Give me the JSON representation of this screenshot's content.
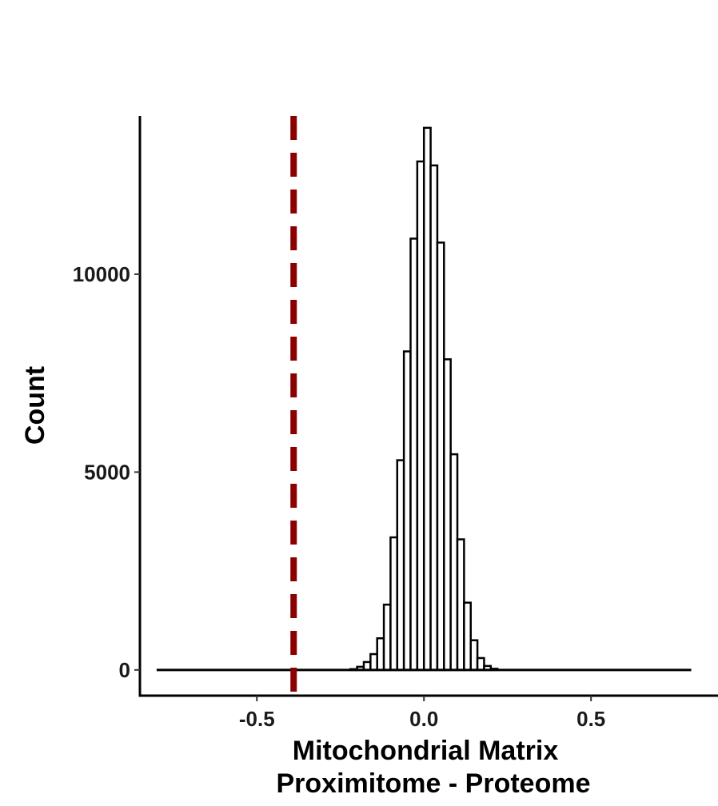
{
  "chart_data": {
    "type": "bar",
    "subtype": "histogram",
    "title": "",
    "xlabel_lines": [
      "Mitochondrial Matrix",
      "Proximitome - Proteome"
    ],
    "ylabel": "Count",
    "xlim": [
      -0.85,
      0.88
    ],
    "ylim": [
      -650,
      14000
    ],
    "x_ticks": [
      -0.5,
      0.0,
      0.5
    ],
    "x_tick_labels": [
      "-0.5",
      "0.0",
      "0.5"
    ],
    "y_ticks": [
      0,
      5000,
      10000
    ],
    "y_tick_labels": [
      "0",
      "5000",
      "10000"
    ],
    "bin_width": 0.02,
    "range": [
      -0.8,
      0.8
    ],
    "bins": [
      {
        "x0": -0.22,
        "x1": -0.2,
        "count": 20
      },
      {
        "x0": -0.2,
        "x1": -0.18,
        "count": 80
      },
      {
        "x0": -0.18,
        "x1": -0.16,
        "count": 200
      },
      {
        "x0": -0.16,
        "x1": -0.14,
        "count": 400
      },
      {
        "x0": -0.14,
        "x1": -0.12,
        "count": 800
      },
      {
        "x0": -0.12,
        "x1": -0.1,
        "count": 1650
      },
      {
        "x0": -0.1,
        "x1": -0.08,
        "count": 3350
      },
      {
        "x0": -0.08,
        "x1": -0.06,
        "count": 5300
      },
      {
        "x0": -0.06,
        "x1": -0.04,
        "count": 8050
      },
      {
        "x0": -0.04,
        "x1": -0.02,
        "count": 10900
      },
      {
        "x0": -0.02,
        "x1": 0.0,
        "count": 12850
      },
      {
        "x0": 0.0,
        "x1": 0.02,
        "count": 13700
      },
      {
        "x0": 0.02,
        "x1": 0.04,
        "count": 12750
      },
      {
        "x0": 0.04,
        "x1": 0.06,
        "count": 10800
      },
      {
        "x0": 0.06,
        "x1": 0.08,
        "count": 7850
      },
      {
        "x0": 0.08,
        "x1": 0.1,
        "count": 5450
      },
      {
        "x0": 0.1,
        "x1": 0.12,
        "count": 3300
      },
      {
        "x0": 0.12,
        "x1": 0.14,
        "count": 1700
      },
      {
        "x0": 0.14,
        "x1": 0.16,
        "count": 750
      },
      {
        "x0": 0.16,
        "x1": 0.18,
        "count": 300
      },
      {
        "x0": 0.18,
        "x1": 0.2,
        "count": 100
      },
      {
        "x0": 0.2,
        "x1": 0.22,
        "count": 30
      }
    ],
    "reference_line": {
      "x": -0.39,
      "style": "dashed",
      "color": "#8b0000"
    },
    "bar_fill": "#ffffff",
    "bar_stroke": "#000000",
    "grid": false,
    "legend": "none"
  }
}
